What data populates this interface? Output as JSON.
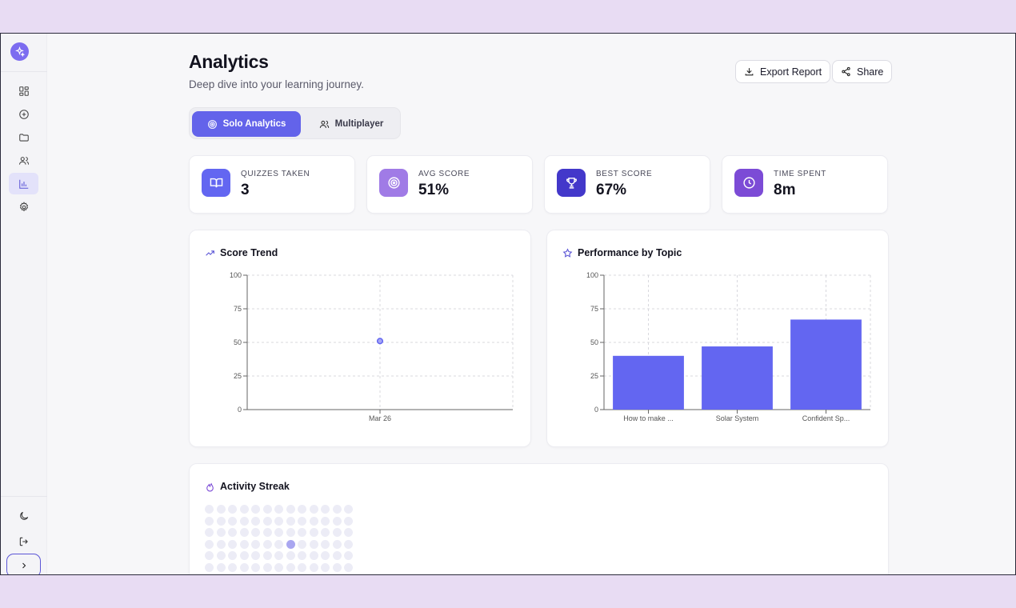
{
  "page": {
    "title": "Analytics",
    "subtitle": "Deep dive into your learning journey."
  },
  "header": {
    "export_label": "Export Report",
    "share_label": "Share"
  },
  "tabs": [
    {
      "label": "Solo Analytics",
      "active": true
    },
    {
      "label": "Multiplayer",
      "active": false
    }
  ],
  "stats": [
    {
      "label": "QUIZZES TAKEN",
      "value": "3",
      "icon": "book-icon",
      "color": "#6366f1"
    },
    {
      "label": "AVG SCORE",
      "value": "51%",
      "icon": "target-icon",
      "color": "#a07be6"
    },
    {
      "label": "BEST SCORE",
      "value": "67%",
      "icon": "trophy-icon",
      "color": "#4338ca"
    },
    {
      "label": "TIME SPENT",
      "value": "8m",
      "icon": "clock-icon",
      "color": "#7c4bd6"
    }
  ],
  "sidebar": {
    "items": [
      {
        "icon": "dashboard-icon",
        "active": false
      },
      {
        "icon": "plus-circle-icon",
        "active": false
      },
      {
        "icon": "folder-icon",
        "active": false
      },
      {
        "icon": "users-icon",
        "active": false
      },
      {
        "icon": "bar-chart-icon",
        "active": true
      },
      {
        "icon": "settings-icon",
        "active": false
      }
    ],
    "bottom": [
      "moon-icon",
      "logout-icon",
      "chevron-right-icon"
    ]
  },
  "score_trend": {
    "title": "Score Trend",
    "chart_data": {
      "type": "line",
      "x": [
        "Mar 26"
      ],
      "values": [
        51
      ],
      "yticks": [
        "0",
        "25",
        "50",
        "75",
        "100"
      ],
      "ylim": [
        0,
        100
      ],
      "grid": true
    }
  },
  "performance": {
    "title": "Performance by Topic",
    "chart_data": {
      "type": "bar",
      "categories": [
        "How to make ...",
        "Solar System",
        "Confident Sp..."
      ],
      "values": [
        40,
        47,
        67
      ],
      "yticks": [
        "0",
        "25",
        "50",
        "75",
        "100"
      ],
      "ylim": [
        0,
        100
      ],
      "grid": true,
      "color": "#6366f1"
    }
  },
  "streak": {
    "title": "Activity Streak",
    "highlight_day": {
      "row": 3,
      "col": 7
    }
  }
}
